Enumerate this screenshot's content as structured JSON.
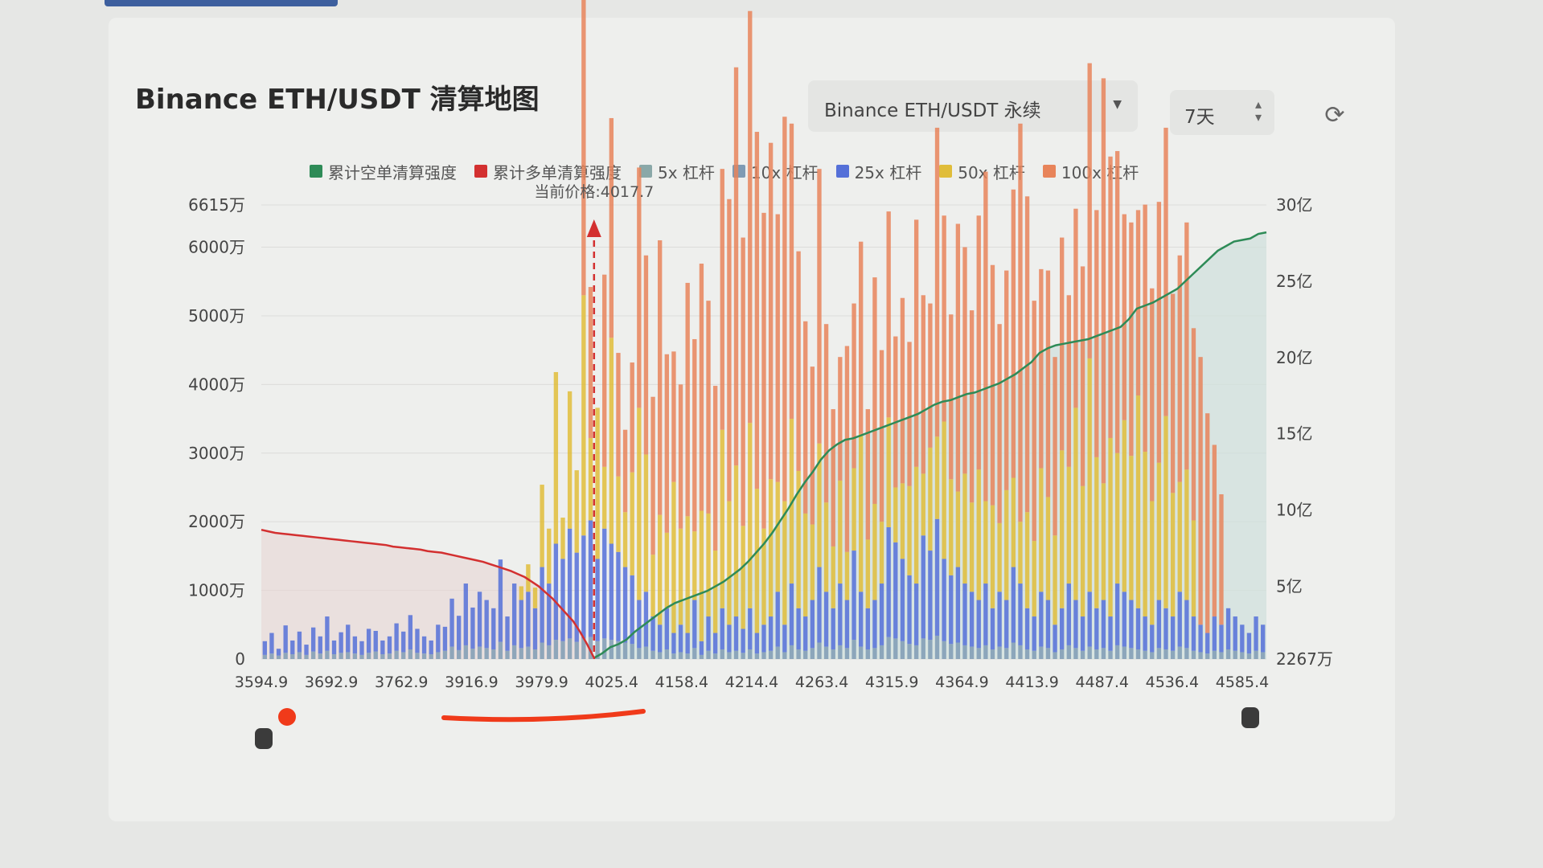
{
  "header": {
    "title": "Binance ETH/USDT 清算地图",
    "market_select": "Binance ETH/USDT 永续",
    "period_select": "7天",
    "refresh_icon": "refresh-icon"
  },
  "colors": {
    "cum_short": "#2e8b57",
    "cum_long": "#d33030",
    "lev5": "#8aa8a8",
    "lev10": "#7f9bb4",
    "lev25": "#5570d8",
    "lev50": "#e0bd3a",
    "lev100": "#e8845a"
  },
  "chart_data": {
    "type": "bar",
    "legend": [
      "累计空单清算强度",
      "累计多单清算强度",
      "5x 杠杆",
      "10x 杠杆",
      "25x 杠杆",
      "50x 杠杆",
      "100x 杠杆"
    ],
    "legend_placement": "top",
    "current_price_label": "当前价格:4017.7",
    "current_price": 4017.7,
    "x_ticks": [
      "3594.9",
      "3692.9",
      "3762.9",
      "3916.9",
      "3979.9",
      "4025.4",
      "4158.4",
      "4214.4",
      "4263.4",
      "4315.9",
      "4364.9",
      "4413.9",
      "4487.4",
      "4536.4",
      "4585.4"
    ],
    "y_left_ticks": [
      "0",
      "1000万",
      "2000万",
      "3000万",
      "4000万",
      "5000万",
      "6000万",
      "6615万"
    ],
    "y_left_values": [
      0,
      1000,
      2000,
      3000,
      4000,
      5000,
      6000,
      6615
    ],
    "y_left_max": 6615,
    "y_right_ticks": [
      "2267万",
      "5亿",
      "10亿",
      "15亿",
      "20亿",
      "25亿",
      "30亿"
    ],
    "y_right_values": [
      0.2267,
      5,
      10,
      15,
      20,
      25,
      30
    ],
    "y_right_min": 0.2267,
    "y_right_max": 30,
    "current_price_index": 48,
    "bars_lev25": [
      200,
      300,
      100,
      400,
      200,
      300,
      150,
      350,
      250,
      500,
      200,
      300,
      400,
      250,
      200,
      350,
      300,
      200,
      250,
      400,
      300,
      500,
      350,
      250,
      200,
      400,
      350,
      700,
      500,
      900,
      600,
      800,
      700,
      600,
      1200,
      500,
      900,
      700,
      800,
      600,
      1100,
      900,
      1400,
      1200,
      1600,
      1300,
      1500,
      1700,
      1200,
      1600,
      1400,
      1300,
      1100,
      1000,
      700,
      800,
      500,
      400,
      600,
      300,
      400,
      300,
      700,
      200,
      500,
      300,
      600,
      400,
      500,
      350,
      600,
      300,
      400,
      500,
      800,
      400,
      900,
      600,
      500,
      700,
      1100,
      800,
      600,
      900,
      700,
      1300,
      800,
      600,
      700,
      900,
      1600,
      1400,
      1200,
      1000,
      900,
      1500,
      1300,
      1700,
      1200,
      1000,
      1100,
      900,
      800,
      700,
      900,
      600,
      800,
      700,
      1100,
      900,
      600,
      500,
      800,
      700,
      400,
      600,
      900,
      700,
      500,
      800,
      600,
      700,
      500,
      900,
      800,
      700,
      600,
      500,
      400,
      700,
      600,
      500,
      800,
      700,
      500,
      400,
      300,
      500,
      400,
      600,
      500,
      400,
      300,
      500,
      400
    ],
    "bars_lev50": [
      0,
      0,
      0,
      0,
      0,
      0,
      0,
      0,
      0,
      0,
      0,
      0,
      0,
      0,
      0,
      0,
      0,
      0,
      0,
      0,
      0,
      0,
      0,
      0,
      0,
      0,
      0,
      0,
      0,
      0,
      0,
      0,
      0,
      0,
      0,
      0,
      0,
      200,
      400,
      300,
      1200,
      800,
      2500,
      600,
      2000,
      1200,
      3500,
      1200,
      2200,
      900,
      3000,
      1100,
      800,
      1500,
      2800,
      2000,
      900,
      1600,
      1100,
      2200,
      1400,
      1700,
      1000,
      1900,
      1500,
      1200,
      2600,
      1800,
      2200,
      1500,
      2700,
      2100,
      1400,
      2000,
      1600,
      1800,
      2400,
      2000,
      1500,
      1100,
      1800,
      1300,
      900,
      1500,
      700,
      1200,
      2300,
      1000,
      1400,
      900,
      1600,
      800,
      1100,
      1300,
      1700,
      900,
      1500,
      1200,
      2000,
      1400,
      1100,
      1600,
      1300,
      1900,
      1200,
      1500,
      1000,
      1600,
      1300,
      900,
      1400,
      1100,
      1800,
      1500,
      1300,
      2300,
      1700,
      2800,
      1900,
      3400,
      2200,
      1700,
      2600,
      1900,
      2500,
      2100,
      3100,
      2400,
      1800,
      2000,
      2800,
      1800,
      1600,
      1900,
      1400
    ],
    "bars_lev100": [
      0,
      0,
      0,
      0,
      0,
      0,
      0,
      0,
      0,
      0,
      0,
      0,
      0,
      0,
      0,
      0,
      0,
      0,
      0,
      0,
      0,
      0,
      0,
      0,
      0,
      0,
      0,
      0,
      0,
      0,
      0,
      0,
      0,
      0,
      0,
      0,
      0,
      0,
      0,
      0,
      0,
      0,
      0,
      0,
      0,
      0,
      5000,
      2200,
      0,
      2800,
      3200,
      1800,
      1200,
      1600,
      3500,
      2900,
      2300,
      4000,
      2600,
      1900,
      2100,
      3400,
      2800,
      3600,
      3100,
      2400,
      3800,
      4400,
      5800,
      4200,
      6000,
      5200,
      4600,
      4900,
      3900,
      5600,
      4300,
      3200,
      2800,
      2300,
      4000,
      2600,
      2000,
      1800,
      3000,
      2400,
      2800,
      1900,
      3300,
      2500,
      3000,
      2200,
      2700,
      2100,
      3600,
      2600,
      2100,
      4500,
      3000,
      2400,
      3900,
      3300,
      2800,
      3700,
      4800,
      3500,
      2900,
      3200,
      4200,
      5800,
      4600,
      3500,
      2900,
      3300,
      2600,
      3100,
      2500,
      2900,
      3200,
      4300,
      3600,
      5900,
      4100,
      4400,
      3000,
      3400,
      2700,
      3600,
      3100,
      3800,
      4200,
      2900,
      3300,
      3600,
      2800,
      3900,
      3200,
      2500,
      1900
    ],
    "bars_lev10": [
      60,
      80,
      50,
      90,
      70,
      100,
      60,
      110,
      80,
      120,
      70,
      90,
      100,
      80,
      60,
      90,
      110,
      70,
      80,
      120,
      100,
      140,
      90,
      80,
      70,
      100,
      120,
      180,
      130,
      200,
      150,
      180,
      160,
      140,
      250,
      120,
      200,
      160,
      180,
      140,
      240,
      200,
      280,
      260,
      300,
      250,
      300,
      320,
      260,
      300,
      280,
      260,
      240,
      220,
      160,
      180,
      120,
      100,
      140,
      80,
      100,
      80,
      160,
      60,
      120,
      80,
      140,
      100,
      120,
      90,
      140,
      80,
      100,
      120,
      180,
      100,
      200,
      140,
      120,
      160,
      240,
      180,
      140,
      200,
      160,
      280,
      180,
      140,
      160,
      200,
      320,
      300,
      260,
      220,
      200,
      300,
      280,
      340,
      260,
      220,
      240,
      200,
      180,
      160,
      200,
      140,
      180,
      160,
      240,
      200,
      140,
      120,
      180,
      160,
      100,
      140,
      200,
      160,
      120,
      180,
      140,
      160,
      120,
      200,
      180,
      160,
      140,
      120,
      100,
      160,
      140,
      120,
      180,
      160,
      120,
      100,
      80,
      120,
      100,
      140,
      120,
      100,
      80,
      120,
      100
    ],
    "cum_long": [
      8.7,
      8.6,
      8.5,
      8.45,
      8.4,
      8.35,
      8.3,
      8.25,
      8.2,
      8.15,
      8.1,
      8.05,
      8.0,
      7.95,
      7.9,
      7.85,
      7.8,
      7.75,
      7.7,
      7.6,
      7.55,
      7.5,
      7.45,
      7.4,
      7.3,
      7.25,
      7.2,
      7.1,
      7.0,
      6.9,
      6.8,
      6.7,
      6.6,
      6.45,
      6.3,
      6.15,
      6.0,
      5.8,
      5.6,
      5.3,
      5.0,
      4.6,
      4.2,
      3.7,
      3.2,
      2.7,
      2.0,
      1.2,
      0.3
    ],
    "cum_short": [
      0.3,
      0.6,
      1.0,
      1.2,
      1.5,
      2.0,
      2.4,
      2.8,
      3.2,
      3.6,
      3.9,
      4.1,
      4.3,
      4.5,
      4.7,
      5.0,
      5.3,
      5.7,
      6.1,
      6.6,
      7.2,
      7.8,
      8.5,
      9.3,
      10.1,
      11.0,
      11.8,
      12.5,
      13.3,
      13.9,
      14.3,
      14.6,
      14.7,
      14.9,
      15.1,
      15.3,
      15.5,
      15.7,
      15.9,
      16.1,
      16.3,
      16.6,
      16.9,
      17.1,
      17.2,
      17.4,
      17.6,
      17.7,
      17.9,
      18.1,
      18.3,
      18.6,
      18.9,
      19.3,
      19.7,
      20.3,
      20.6,
      20.8,
      20.9,
      21.0,
      21.1,
      21.2,
      21.4,
      21.6,
      21.8,
      22.0,
      22.5,
      23.2,
      23.4,
      23.6,
      23.9,
      24.2,
      24.5,
      25.0,
      25.5,
      26.0,
      26.5,
      27.0,
      27.3,
      27.6,
      27.7,
      27.8,
      28.1,
      28.2
    ]
  }
}
